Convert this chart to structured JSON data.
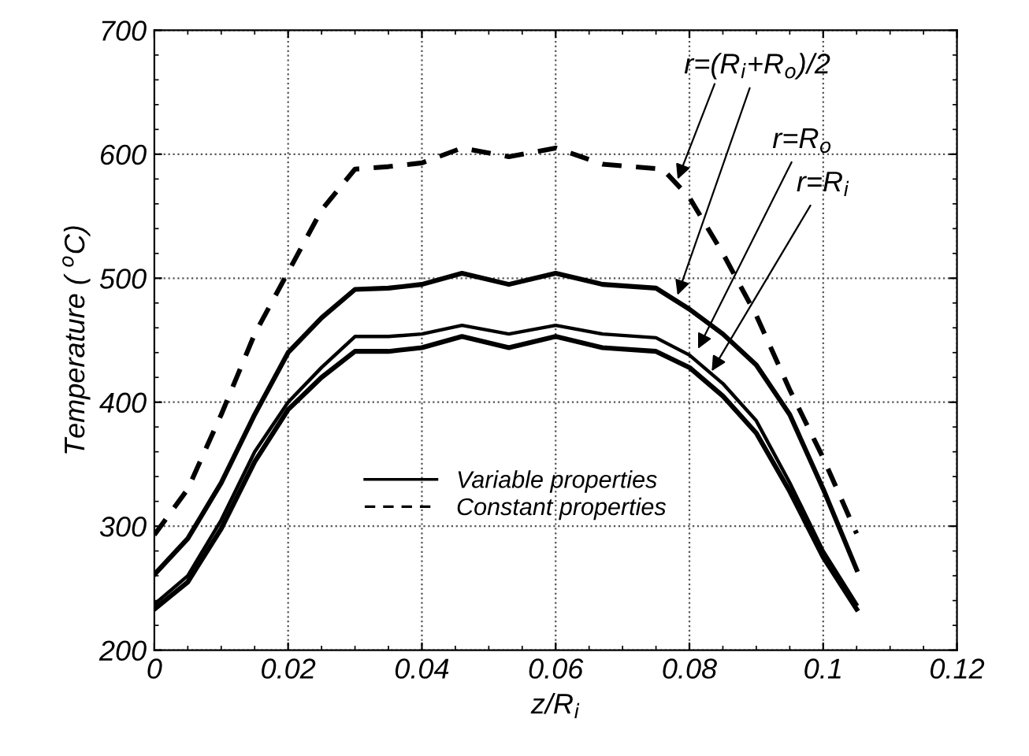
{
  "chart_data": {
    "type": "line",
    "xlabel": "z/R$_{i}$",
    "ylabel": "Temperature ( $^{o}$C)",
    "xlim": [
      0,
      0.12
    ],
    "xticks": [
      0,
      0.02,
      0.04,
      0.06,
      0.08,
      0.1,
      0.12
    ],
    "ylim": [
      200,
      700
    ],
    "yticks": [
      200,
      300,
      400,
      500,
      600,
      700
    ],
    "grid": true,
    "legend": "center",
    "series": [
      {
        "name": "Variable properties",
        "color": "#000000",
        "line_style": "solid",
        "x": [
          0,
          0.005,
          0.01,
          0.015,
          0.02,
          0.025,
          0.03,
          0.035,
          0.04,
          0.046,
          0.053,
          0.06,
          0.067,
          0.075,
          0.08,
          0.085,
          0.09,
          0.095,
          0.1,
          0.105
        ],
        "values": [
          261,
          290,
          335,
          390,
          440,
          468,
          491,
          492,
          495,
          504,
          495,
          504,
          495,
          492,
          475,
          455,
          430,
          390,
          330,
          265
        ]
      },
      {
        "color": "#000000",
        "line_style": "solid",
        "x": [
          0,
          0.005,
          0.01,
          0.015,
          0.02,
          0.025,
          0.03,
          0.035,
          0.04,
          0.046,
          0.053,
          0.06,
          0.067,
          0.075,
          0.08,
          0.085,
          0.09,
          0.095,
          0.1,
          0.105
        ],
        "values": [
          237,
          260,
          305,
          360,
          400,
          428,
          453,
          453,
          455,
          462,
          455,
          462,
          455,
          452,
          438,
          415,
          385,
          335,
          280,
          237
        ]
      },
      {
        "color": "#000000",
        "line_style": "solid",
        "x": [
          0,
          0.005,
          0.01,
          0.015,
          0.02,
          0.025,
          0.03,
          0.035,
          0.04,
          0.046,
          0.053,
          0.06,
          0.067,
          0.075,
          0.08,
          0.085,
          0.09,
          0.095,
          0.1,
          0.105
        ],
        "values": [
          233,
          255,
          298,
          352,
          394,
          420,
          441,
          441,
          444,
          453,
          444,
          453,
          444,
          441,
          428,
          405,
          375,
          328,
          275,
          233
        ]
      },
      {
        "name": "Constant properties",
        "color": "#000000",
        "line_style": "dashed",
        "x": [
          0,
          0.005,
          0.01,
          0.015,
          0.02,
          0.025,
          0.03,
          0.035,
          0.04,
          0.046,
          0.053,
          0.06,
          0.067,
          0.076,
          0.08,
          0.085,
          0.09,
          0.095,
          0.1,
          0.105
        ],
        "values": [
          293,
          330,
          390,
          455,
          505,
          555,
          588,
          590,
          593,
          605,
          598,
          605,
          592,
          588,
          565,
          520,
          470,
          410,
          355,
          294
        ]
      }
    ],
    "annotations": [
      {
        "text": "r=(R$_{i}$+R$_{o}$)/2",
        "x": 0.078,
        "y": 483
      },
      {
        "text": "r=R$_{o}$",
        "x": 0.081,
        "y": 440
      },
      {
        "text": "r=R$_{i}$",
        "x": 0.083,
        "y": 422
      }
    ]
  }
}
